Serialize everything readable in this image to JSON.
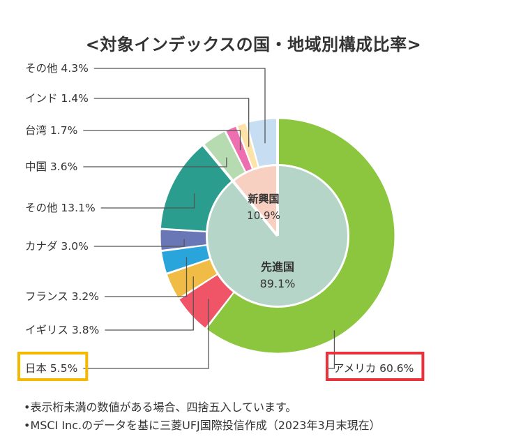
{
  "chart_data": {
    "type": "pie",
    "title": "<対象インデックスの国・地域別構成比率>",
    "unit": "%",
    "outer_ring": [
      {
        "name": "アメリカ",
        "value": 60.6,
        "color": "#8cc63f",
        "label": "アメリカ 60.6%",
        "highlight": "#e8323c"
      },
      {
        "name": "日本",
        "value": 5.5,
        "color": "#ef5467",
        "label": "日本 5.5%",
        "highlight": "#f5b800"
      },
      {
        "name": "イギリス",
        "value": 3.8,
        "color": "#f0bc45",
        "label": "イギリス 3.8%"
      },
      {
        "name": "フランス",
        "value": 3.2,
        "color": "#2aa5dc",
        "label": "フランス 3.2%"
      },
      {
        "name": "カナダ",
        "value": 3.0,
        "color": "#6a77b6",
        "label": "カナダ 3.0%"
      },
      {
        "name": "その他",
        "value": 13.1,
        "color": "#2a9d8f",
        "label": "その他 13.1%"
      },
      {
        "name": "中国",
        "value": 3.6,
        "color": "#b7dbb0",
        "label": "中国 3.6%"
      },
      {
        "name": "台湾",
        "value": 1.7,
        "color": "#ee6fb0",
        "label": "台湾 1.7%"
      },
      {
        "name": "インド",
        "value": 1.4,
        "color": "#fde3a7",
        "label": "インド 1.4%"
      },
      {
        "name": "その他",
        "value": 4.3,
        "color": "#c7ddf2",
        "label": "その他 4.3%"
      }
    ],
    "inner_pie": [
      {
        "name": "先進国",
        "value": 89.1,
        "color": "#b6d5c9",
        "label_name": "先進国",
        "label_value": "89.1%"
      },
      {
        "name": "新興国",
        "value": 10.9,
        "color": "#f8d0c2",
        "label_name": "新興国",
        "label_value": "10.9%"
      }
    ]
  },
  "notes": [
    "•表示桁未満の数値がある場合、四捨五入しています。",
    "•MSCI Inc.のデータを基に三菱UFJ国際投信作成（2023年3月末現在）"
  ]
}
